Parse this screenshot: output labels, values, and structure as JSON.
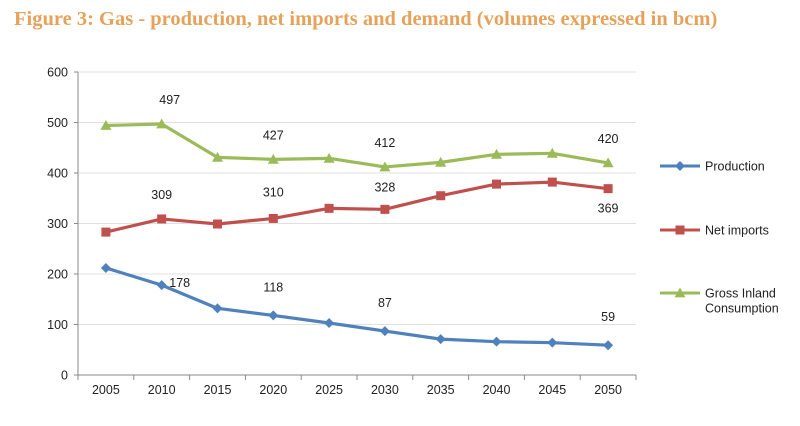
{
  "figure": {
    "title": "Figure 3: Gas - production, net imports and demand (volumes expressed in bcm)"
  },
  "chart_data": {
    "type": "line",
    "title": "Figure 3: Gas - production, net imports and demand (volumes expressed in bcm)",
    "xlabel": "",
    "ylabel": "",
    "x": [
      "2005",
      "2010",
      "2015",
      "2020",
      "2025",
      "2030",
      "2035",
      "2040",
      "2045",
      "2050"
    ],
    "ylim": [
      0,
      600
    ],
    "yticks": [
      0,
      100,
      200,
      300,
      400,
      500,
      600
    ],
    "grid": "horizontal",
    "legend_position": "right",
    "series": [
      {
        "name": "Production",
        "legend_lines": [
          "Production"
        ],
        "color": "#4f81bd",
        "marker": "diamond",
        "values": [
          212,
          178,
          132,
          118,
          103,
          87,
          71,
          66,
          64,
          59
        ],
        "labels": [
          {
            "index": 1,
            "text": "178"
          },
          {
            "index": 3,
            "text": "118"
          },
          {
            "index": 5,
            "text": "87"
          },
          {
            "index": 9,
            "text": "59"
          }
        ]
      },
      {
        "name": "Net imports",
        "legend_lines": [
          "Net imports"
        ],
        "color": "#c0504d",
        "marker": "square",
        "values": [
          283,
          309,
          299,
          310,
          330,
          328,
          355,
          378,
          382,
          369
        ],
        "labels": [
          {
            "index": 1,
            "text": "309"
          },
          {
            "index": 3,
            "text": "310"
          },
          {
            "index": 5,
            "text": "328"
          },
          {
            "index": 9,
            "text": "369"
          }
        ]
      },
      {
        "name": "Gross Inland Consumption",
        "legend_lines": [
          "Gross Inland",
          "Consumption"
        ],
        "color": "#9bbb59",
        "marker": "triangle",
        "values": [
          494,
          497,
          431,
          427,
          429,
          412,
          421,
          437,
          439,
          420
        ],
        "labels": [
          {
            "index": 1,
            "text": "497"
          },
          {
            "index": 3,
            "text": "427"
          },
          {
            "index": 5,
            "text": "412"
          },
          {
            "index": 9,
            "text": "420"
          }
        ]
      }
    ]
  }
}
